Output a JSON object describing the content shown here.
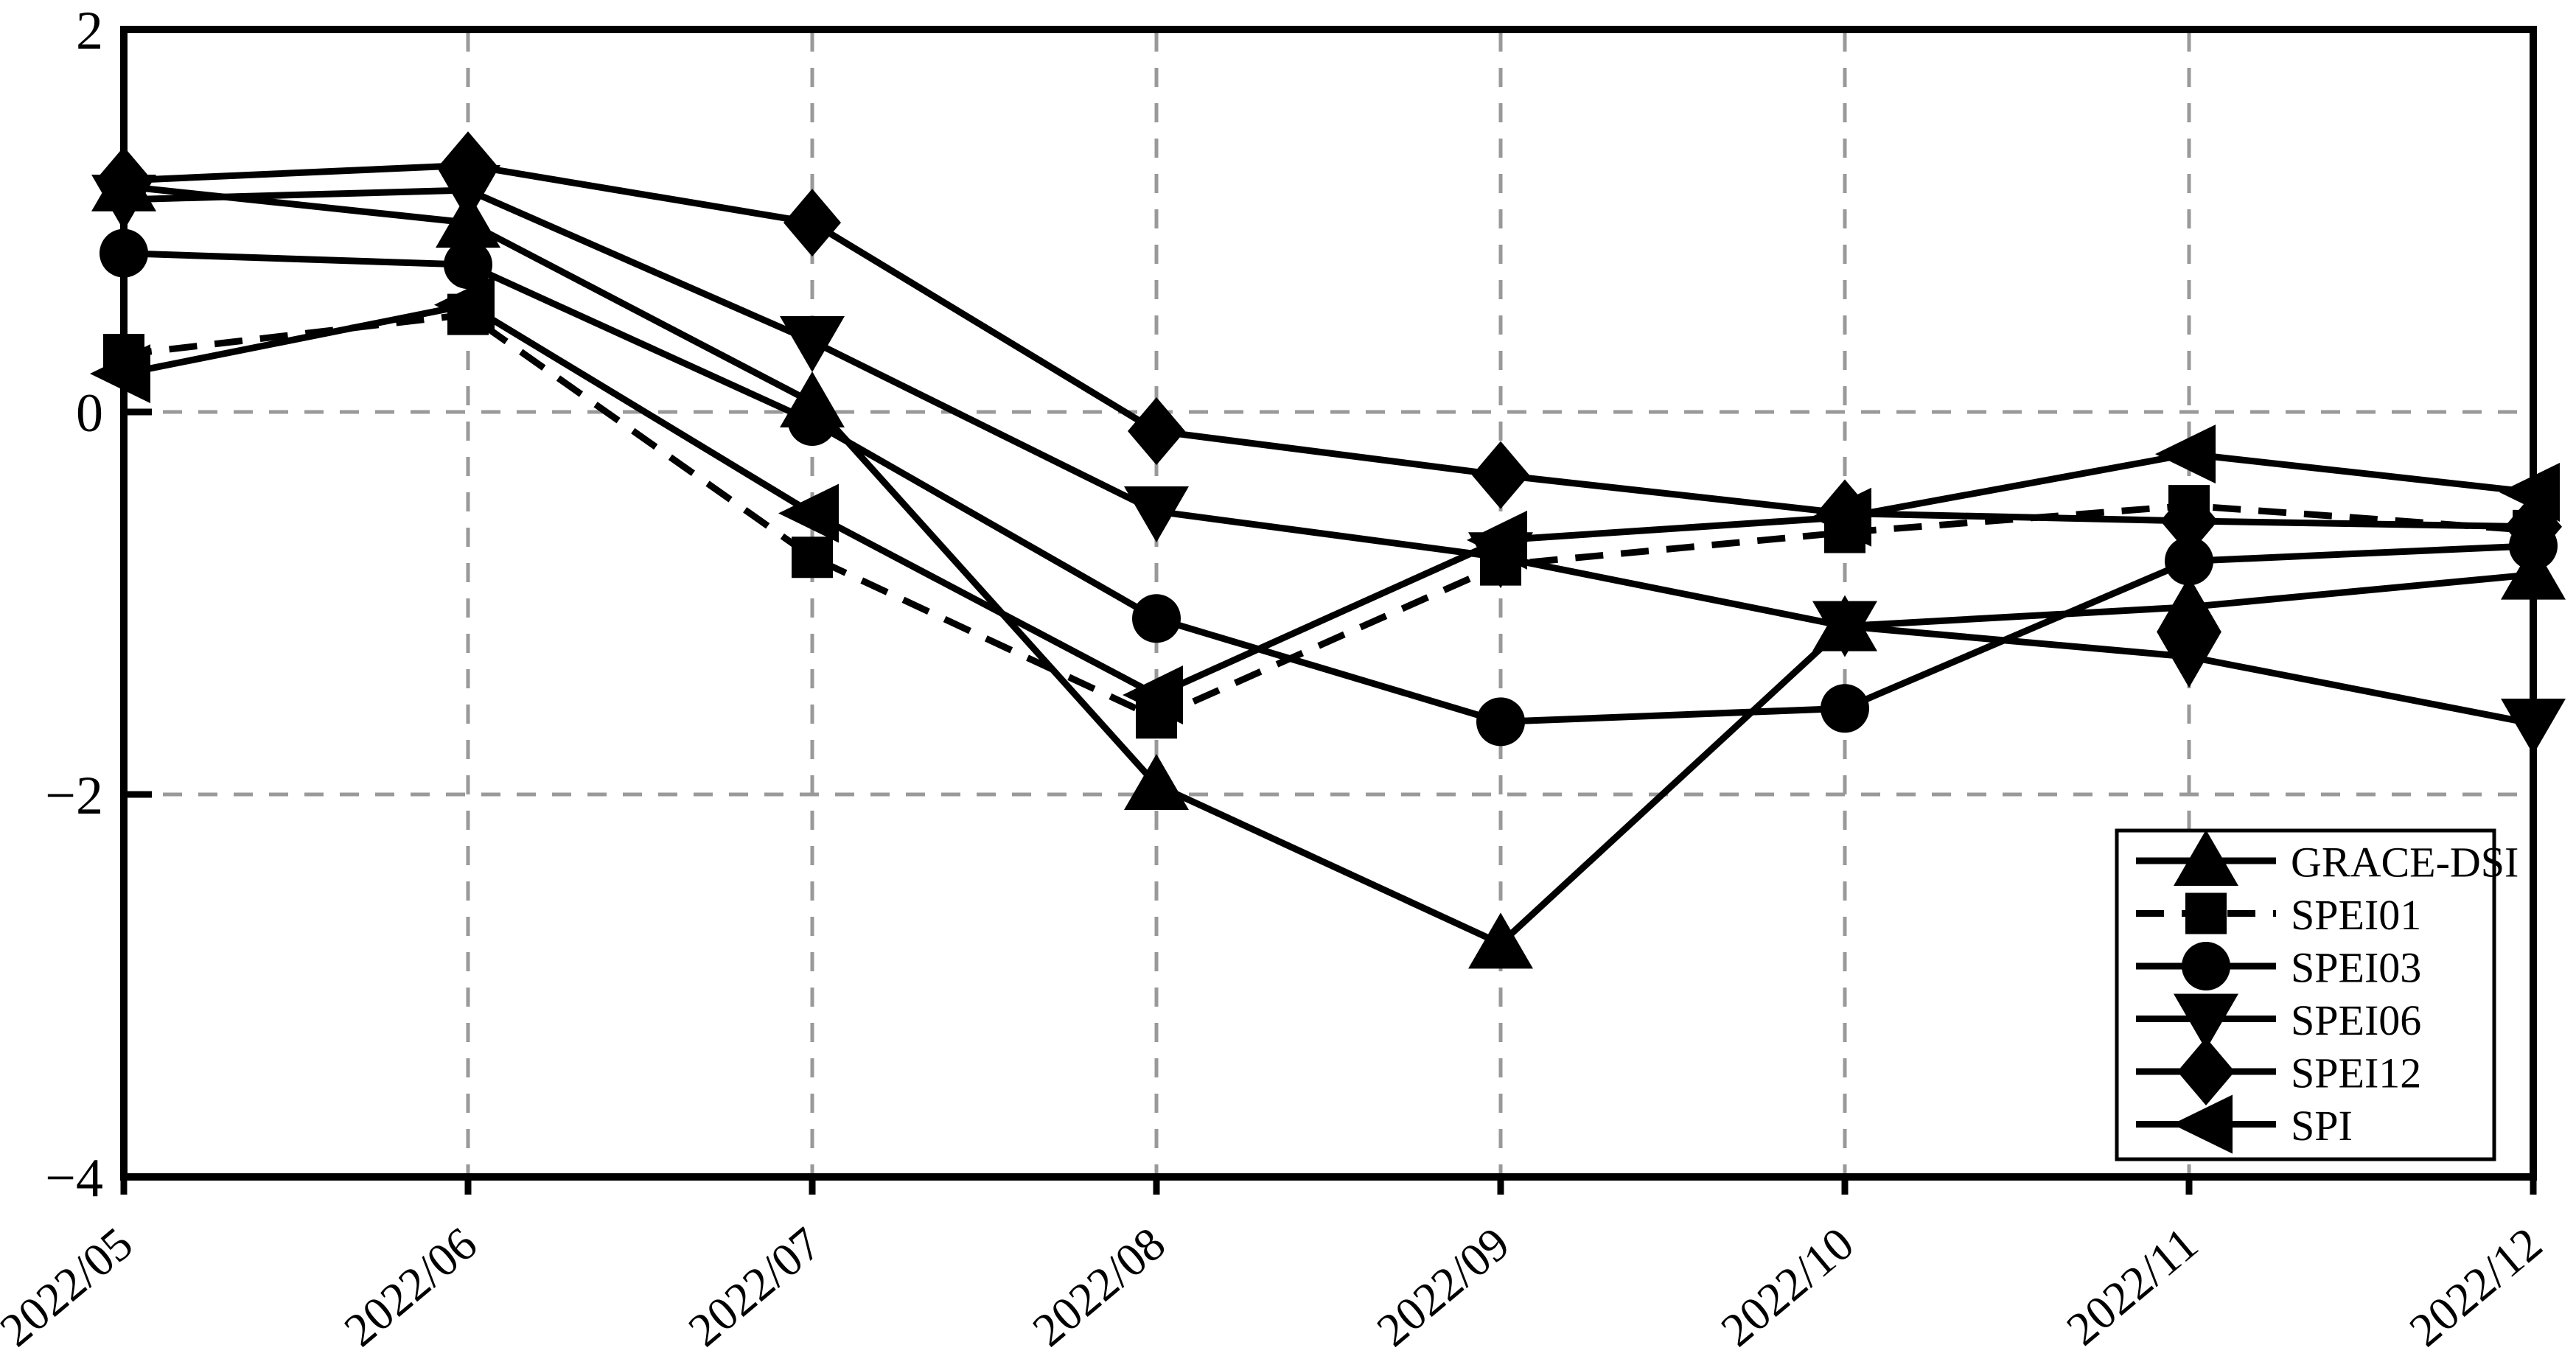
{
  "chart_data": {
    "type": "line",
    "title": "",
    "xlabel": "",
    "ylabel": "",
    "categories": [
      "2022/05",
      "2022/06",
      "2022/07",
      "2022/08",
      "2022/09",
      "2022/10",
      "2022/11",
      "2022/12"
    ],
    "series": [
      {
        "name": "GRACE-DSI",
        "marker": "triangle-up",
        "linestyle": "solid",
        "values": [
          1.18,
          0.99,
          0.05,
          -1.95,
          -2.78,
          -1.12,
          -1.02,
          -0.85
        ]
      },
      {
        "name": "SPEI01",
        "marker": "square",
        "linestyle": "dashed",
        "values": [
          0.3,
          0.51,
          -0.76,
          -1.6,
          -0.8,
          -0.63,
          -0.49,
          -0.62
        ]
      },
      {
        "name": "SPEI03",
        "marker": "circle",
        "linestyle": "solid",
        "values": [
          0.83,
          0.77,
          -0.05,
          -1.08,
          -1.62,
          -1.55,
          -0.78,
          -0.7
        ]
      },
      {
        "name": "SPEI06",
        "marker": "triangle-down",
        "linestyle": "solid",
        "values": [
          1.11,
          1.16,
          0.37,
          -0.52,
          -0.76,
          -1.12,
          -1.28,
          -1.63
        ]
      },
      {
        "name": "SPEI12",
        "marker": "diamond",
        "linestyle": "solid",
        "values": [
          1.21,
          1.29,
          0.99,
          -0.1,
          -0.33,
          -0.53,
          -0.57,
          -0.6
        ]
      },
      {
        "name": "SPI",
        "marker": "triangle-left",
        "linestyle": "solid",
        "values": [
          0.2,
          0.56,
          -0.53,
          -1.48,
          -0.67,
          -0.55,
          -0.22,
          -0.42
        ]
      }
    ],
    "ylim": [
      -4,
      2
    ],
    "yticks": [
      {
        "value": 2,
        "label": "2"
      },
      {
        "value": 0,
        "label": "0"
      },
      {
        "value": -2,
        "label": "−2"
      },
      {
        "value": -4,
        "label": "−4"
      }
    ],
    "grid": {
      "horizontal_at": [
        0,
        -2
      ],
      "vertical_at_category_indices": [
        1,
        2,
        3,
        4,
        5,
        6
      ],
      "style": "dashed",
      "color": "#999999"
    },
    "xtick_rotation_deg": 40,
    "legend": {
      "position": "lower-right",
      "entries": [
        "GRACE-DSI",
        "SPEI01",
        "SPEI03",
        "SPEI06",
        "SPEI12",
        "SPI"
      ]
    },
    "colors": {
      "series": "#000000",
      "axis": "#000000",
      "background": "#ffffff",
      "gridline": "#999999"
    }
  }
}
